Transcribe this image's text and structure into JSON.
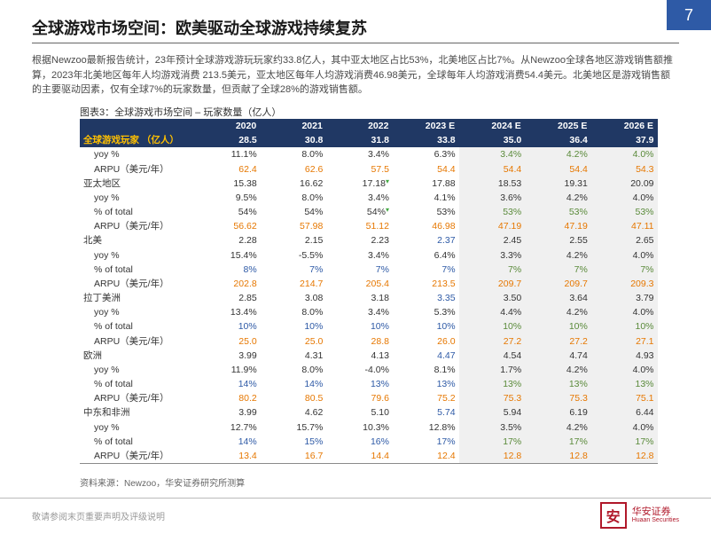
{
  "page_number": "7",
  "title": "全球游戏市场空间：欧美驱动全球游戏持续复苏",
  "intro": "根据Newzoo最新报告统计，23年预计全球游戏游玩玩家约33.8亿人，其中亚太地区占比53%，北美地区占比7%。从Newzoo全球各地区游戏销售额推算，2023年北美地区每年人均游戏消费 213.5美元，亚太地区每年人均游戏消费46.98美元，全球每年人均游戏消费54.4美元。北美地区是游戏销售额的主要驱动因素，仅有全球7%的玩家数量，但贡献了全球28%的游戏销售额。",
  "chart_caption": "图表3：全球游戏市场空间 – 玩家数量（亿人）",
  "source": "资料来源：Newzoo，华安证券研究所测算",
  "disclaimer": "敬请参阅末页重要声明及评级说明",
  "logo": {
    "cn": "华安证券",
    "en": "Huaan Securities"
  },
  "colors": {
    "header_bg": "#203864",
    "header_fg": "#ffffff",
    "accent_yellow": "#ffc000",
    "orange": "#e67700",
    "future_bg": "#f0f0f0",
    "page_bg": "#2e5aa6",
    "brand": "#b0182a"
  },
  "table": {
    "future_start_col": 4,
    "years": [
      "2020",
      "2021",
      "2022",
      "2023 E",
      "2024 E",
      "2025 E",
      "2026 E"
    ],
    "summary": {
      "label": "全球游戏玩家 （亿人）",
      "values": [
        "28.5",
        "30.8",
        "31.8",
        "33.8",
        "35.0",
        "36.4",
        "37.9"
      ]
    },
    "global_sub": [
      {
        "label": "yoy %",
        "values": [
          "11.1%",
          "8.0%",
          "3.4%",
          "6.3%",
          "3.4%",
          "4.2%",
          "4.0%"
        ],
        "future_green": true
      },
      {
        "label": "ARPU（美元/年）",
        "orange": true,
        "values": [
          "62.4",
          "62.6",
          "57.5",
          "54.4",
          "54.4",
          "54.4",
          "54.3"
        ]
      }
    ],
    "regions": [
      {
        "name": "亚太地区",
        "values": [
          "15.38",
          "16.62",
          "17.18",
          "17.88",
          "18.53",
          "19.31",
          "20.09"
        ],
        "marker_col": 2,
        "rows": [
          {
            "label": "yoy %",
            "values": [
              "9.5%",
              "8.0%",
              "3.4%",
              "4.1%",
              "3.6%",
              "4.2%",
              "4.0%"
            ]
          },
          {
            "label": "% of total",
            "values": [
              "54%",
              "54%",
              "54%",
              "53%",
              "53%",
              "53%",
              "53%"
            ],
            "future_green": true,
            "marker_col": 2
          },
          {
            "label": "ARPU（美元/年）",
            "orange": true,
            "values": [
              "56.62",
              "57.98",
              "51.12",
              "46.98",
              "47.19",
              "47.19",
              "47.11"
            ]
          }
        ]
      },
      {
        "name": "北美",
        "values": [
          "2.28",
          "2.15",
          "2.23",
          "2.37",
          "2.45",
          "2.55",
          "2.65"
        ],
        "blue_col": 3,
        "rows": [
          {
            "label": "yoy %",
            "values": [
              "15.4%",
              "-5.5%",
              "3.4%",
              "6.4%",
              "3.3%",
              "4.2%",
              "4.0%"
            ]
          },
          {
            "label": "% of total",
            "values": [
              "8%",
              "7%",
              "7%",
              "7%",
              "7%",
              "7%",
              "7%"
            ],
            "future_green": true,
            "all_blue_hist": true
          },
          {
            "label": "ARPU（美元/年）",
            "orange": true,
            "values": [
              "202.8",
              "214.7",
              "205.4",
              "213.5",
              "209.7",
              "209.7",
              "209.3"
            ]
          }
        ]
      },
      {
        "name": "拉丁美洲",
        "values": [
          "2.85",
          "3.08",
          "3.18",
          "3.35",
          "3.50",
          "3.64",
          "3.79"
        ],
        "blue_col": 3,
        "rows": [
          {
            "label": "yoy %",
            "values": [
              "13.4%",
              "8.0%",
              "3.4%",
              "5.3%",
              "4.4%",
              "4.2%",
              "4.0%"
            ]
          },
          {
            "label": "% of total",
            "values": [
              "10%",
              "10%",
              "10%",
              "10%",
              "10%",
              "10%",
              "10%"
            ],
            "future_green": true,
            "all_blue_hist": true
          },
          {
            "label": "ARPU（美元/年）",
            "orange": true,
            "values": [
              "25.0",
              "25.0",
              "28.8",
              "26.0",
              "27.2",
              "27.2",
              "27.1"
            ]
          }
        ]
      },
      {
        "name": "欧洲",
        "values": [
          "3.99",
          "4.31",
          "4.13",
          "4.47",
          "4.54",
          "4.74",
          "4.93"
        ],
        "blue_col": 3,
        "rows": [
          {
            "label": "yoy %",
            "values": [
              "11.9%",
              "8.0%",
              "-4.0%",
              "8.1%",
              "1.7%",
              "4.2%",
              "4.0%"
            ]
          },
          {
            "label": "% of total",
            "values": [
              "14%",
              "14%",
              "13%",
              "13%",
              "13%",
              "13%",
              "13%"
            ],
            "future_green": true,
            "all_blue_hist": true
          },
          {
            "label": "ARPU（美元/年）",
            "orange": true,
            "values": [
              "80.2",
              "80.5",
              "79.6",
              "75.2",
              "75.3",
              "75.3",
              "75.1"
            ]
          }
        ]
      },
      {
        "name": "中东和非洲",
        "values": [
          "3.99",
          "4.62",
          "5.10",
          "5.74",
          "5.94",
          "6.19",
          "6.44"
        ],
        "blue_col": 3,
        "rows": [
          {
            "label": "yoy %",
            "values": [
              "12.7%",
              "15.7%",
              "10.3%",
              "12.8%",
              "3.5%",
              "4.2%",
              "4.0%"
            ]
          },
          {
            "label": "% of total",
            "values": [
              "14%",
              "15%",
              "16%",
              "17%",
              "17%",
              "17%",
              "17%"
            ],
            "future_green": true,
            "all_blue_hist": true
          },
          {
            "label": "ARPU（美元/年）",
            "orange": true,
            "values": [
              "13.4",
              "16.7",
              "14.4",
              "12.4",
              "12.8",
              "12.8",
              "12.8"
            ],
            "last": true
          }
        ]
      }
    ]
  }
}
